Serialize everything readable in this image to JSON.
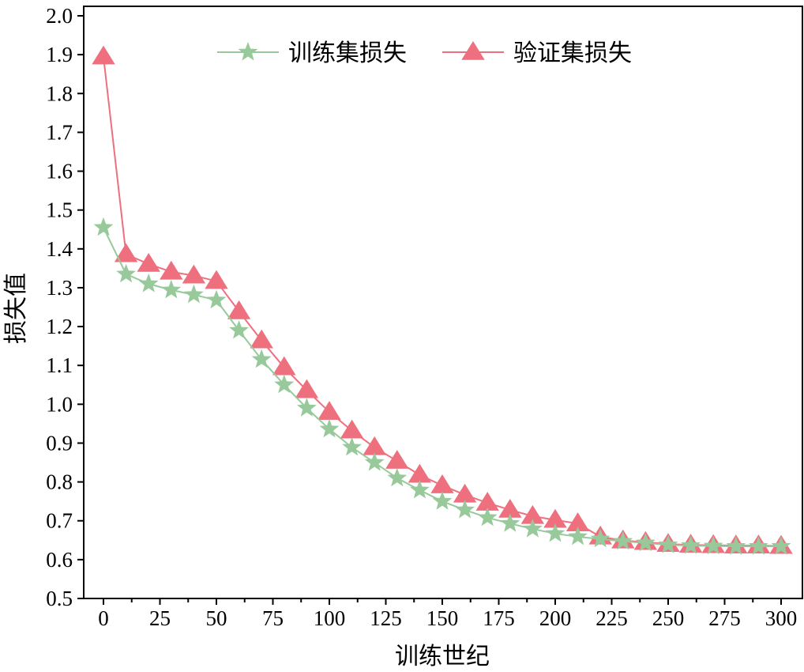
{
  "chart_data": {
    "type": "line",
    "xlabel": "训练世纪",
    "ylabel": "损失值",
    "xlim": [
      -9,
      309
    ],
    "ylim": [
      0.5,
      2.0
    ],
    "x_ticks": [
      0,
      25,
      50,
      75,
      100,
      125,
      150,
      175,
      200,
      225,
      250,
      275,
      300
    ],
    "y_ticks": [
      0.5,
      0.6,
      0.7,
      0.8,
      0.9,
      1.0,
      1.1,
      1.2,
      1.3,
      1.4,
      1.5,
      1.6,
      1.7,
      1.8,
      1.9,
      2.0
    ],
    "grid": false,
    "legend_position": "top-center",
    "x": [
      0,
      10,
      20,
      30,
      40,
      50,
      60,
      70,
      80,
      90,
      100,
      110,
      120,
      130,
      140,
      150,
      160,
      170,
      180,
      190,
      200,
      210,
      220,
      230,
      240,
      250,
      260,
      270,
      280,
      290,
      300
    ],
    "series": [
      {
        "name": "训练集损失",
        "color": "#97c99b",
        "marker": "star",
        "values": [
          1.455,
          1.335,
          1.31,
          1.294,
          1.282,
          1.268,
          1.19,
          1.115,
          1.05,
          0.99,
          0.936,
          0.889,
          0.85,
          0.81,
          0.779,
          0.75,
          0.728,
          0.708,
          0.693,
          0.679,
          0.667,
          0.659,
          0.653,
          0.647,
          0.643,
          0.638,
          0.636,
          0.635,
          0.634,
          0.634,
          0.634
        ]
      },
      {
        "name": "验证集损失",
        "color": "#ee6f7e",
        "marker": "triangle",
        "values": [
          1.895,
          1.386,
          1.361,
          1.341,
          1.331,
          1.317,
          1.239,
          1.164,
          1.095,
          1.036,
          0.98,
          0.932,
          0.889,
          0.854,
          0.818,
          0.791,
          0.767,
          0.746,
          0.728,
          0.712,
          0.702,
          0.693,
          0.659,
          0.649,
          0.645,
          0.64,
          0.638,
          0.637,
          0.636,
          0.636,
          0.635
        ]
      }
    ]
  }
}
